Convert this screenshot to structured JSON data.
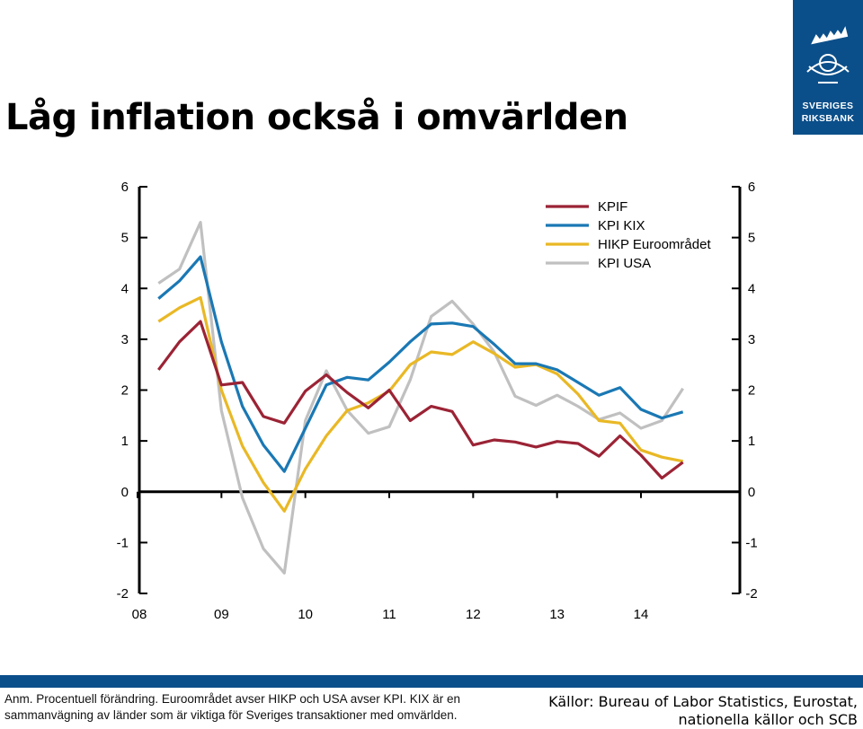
{
  "title": "Låg inflation också i omvärlden",
  "logo": {
    "line1": "SVERIGES",
    "line2": "RIKSBANK"
  },
  "chart_data": {
    "type": "line",
    "x_ticks": [
      "08",
      "09",
      "10",
      "11",
      "12",
      "13",
      "14"
    ],
    "xlim": [
      2008,
      2015.2
    ],
    "ylim": [
      -2,
      6
    ],
    "y_ticks": [
      6,
      5,
      4,
      3,
      2,
      1,
      0,
      -1,
      -2
    ],
    "legend_position": "top-right",
    "grid": false,
    "series": [
      {
        "name": "KPIF",
        "color": "#9b2335",
        "x": [
          2008.25,
          2008.5,
          2008.75,
          2009.0,
          2009.25,
          2009.5,
          2009.75,
          2010.0,
          2010.25,
          2010.5,
          2010.75,
          2011.0,
          2011.25,
          2011.5,
          2011.75,
          2012.0,
          2012.25,
          2012.5,
          2012.75,
          2013.0,
          2013.25,
          2013.5,
          2013.75,
          2014.0,
          2014.25,
          2014.5
        ],
        "values": [
          2.4,
          2.95,
          3.35,
          2.1,
          2.15,
          1.48,
          1.35,
          1.98,
          2.3,
          1.95,
          1.65,
          2.0,
          1.4,
          1.68,
          1.58,
          0.92,
          1.02,
          0.98,
          0.88,
          0.99,
          0.95,
          0.7,
          1.1,
          0.72,
          0.27,
          0.58
        ]
      },
      {
        "name": "KPI KIX",
        "color": "#1a78b4",
        "x": [
          2008.25,
          2008.5,
          2008.75,
          2009.0,
          2009.25,
          2009.5,
          2009.75,
          2010.0,
          2010.25,
          2010.5,
          2010.75,
          2011.0,
          2011.25,
          2011.5,
          2011.75,
          2012.0,
          2012.25,
          2012.5,
          2012.75,
          2013.0,
          2013.25,
          2013.5,
          2013.75,
          2014.0,
          2014.25,
          2014.5
        ],
        "values": [
          3.8,
          4.15,
          4.62,
          2.95,
          1.68,
          0.92,
          0.4,
          1.25,
          2.1,
          2.25,
          2.2,
          2.55,
          2.95,
          3.3,
          3.32,
          3.25,
          2.9,
          2.52,
          2.52,
          2.4,
          2.15,
          1.9,
          2.05,
          1.62,
          1.45,
          1.57
        ]
      },
      {
        "name": "HIKP Euroområdet",
        "color": "#e9b825",
        "x": [
          2008.25,
          2008.5,
          2008.75,
          2009.0,
          2009.25,
          2009.5,
          2009.75,
          2010.0,
          2010.25,
          2010.5,
          2010.75,
          2011.0,
          2011.25,
          2011.5,
          2011.75,
          2012.0,
          2012.25,
          2012.5,
          2012.75,
          2013.0,
          2013.25,
          2013.5,
          2013.75,
          2014.0,
          2014.25,
          2014.5
        ],
        "values": [
          3.35,
          3.62,
          3.82,
          2.0,
          0.9,
          0.18,
          -0.38,
          0.45,
          1.1,
          1.6,
          1.75,
          1.98,
          2.5,
          2.75,
          2.7,
          2.95,
          2.72,
          2.45,
          2.5,
          2.32,
          1.92,
          1.4,
          1.35,
          0.82,
          0.68,
          0.6
        ]
      },
      {
        "name": "KPI USA",
        "color": "#c0c0c0",
        "x": [
          2008.25,
          2008.5,
          2008.75,
          2009.0,
          2009.25,
          2009.5,
          2009.75,
          2010.0,
          2010.25,
          2010.5,
          2010.75,
          2011.0,
          2011.25,
          2011.5,
          2011.75,
          2012.0,
          2012.25,
          2012.5,
          2012.75,
          2013.0,
          2013.25,
          2013.5,
          2013.75,
          2014.0,
          2014.25,
          2014.5
        ],
        "values": [
          4.1,
          4.38,
          5.3,
          1.6,
          -0.12,
          -1.12,
          -1.6,
          1.4,
          2.38,
          1.6,
          1.15,
          1.28,
          2.2,
          3.45,
          3.75,
          3.3,
          2.75,
          1.88,
          1.7,
          1.9,
          1.68,
          1.42,
          1.55,
          1.25,
          1.4,
          2.03
        ]
      }
    ]
  },
  "footer": {
    "note": "Anm. Procentuell förändring. Euroområdet avser HIKP och USA avser KPI. KIX är en sammanvägning av länder som är viktiga för Sveriges transaktioner med omvärlden.",
    "source": "Källor: Bureau of Labor Statistics, Eurostat, nationella källor och SCB"
  }
}
